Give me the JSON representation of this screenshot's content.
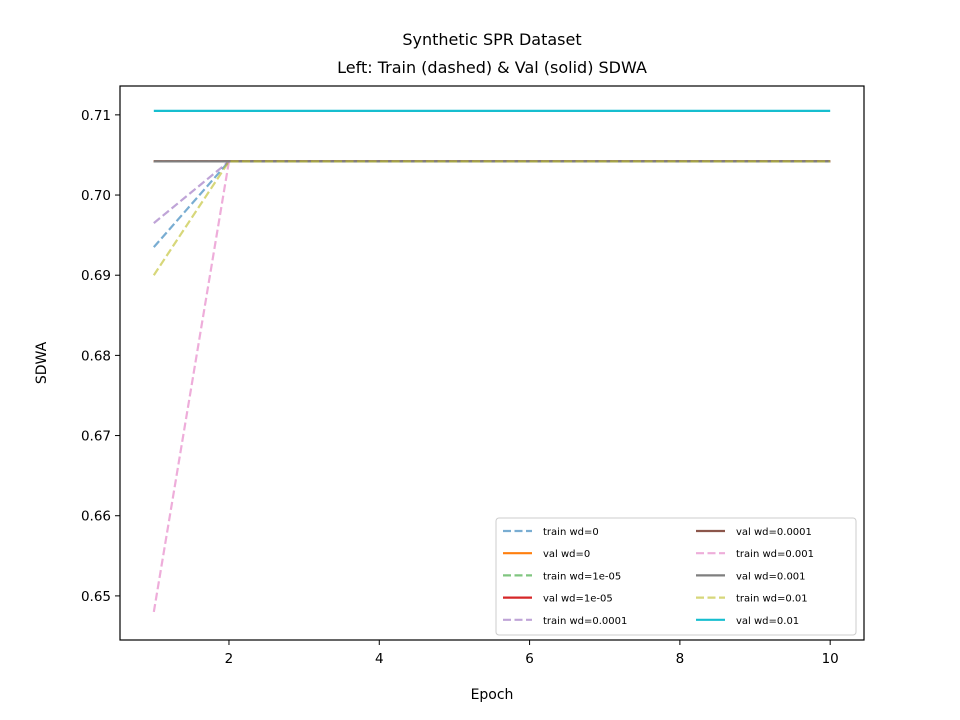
{
  "chart_data": {
    "type": "line",
    "title": "Synthetic SPR Dataset",
    "subtitle": "Left: Train (dashed) & Val (solid) SDWA",
    "xlabel": "Epoch",
    "ylabel": "SDWA",
    "xlim": [
      0.55,
      10.45
    ],
    "ylim": [
      0.6445,
      0.7136
    ],
    "xticks": [
      2,
      4,
      6,
      8,
      10
    ],
    "xtick_labels": [
      "2",
      "4",
      "6",
      "8",
      "10"
    ],
    "yticks": [
      0.65,
      0.66,
      0.67,
      0.68,
      0.69,
      0.7,
      0.71
    ],
    "ytick_labels": [
      "0.65",
      "0.66",
      "0.67",
      "0.68",
      "0.69",
      "0.70",
      "0.71"
    ],
    "grid": false,
    "legend_position": "lower-right",
    "legend_columns": 2,
    "x": [
      1,
      2,
      3,
      4,
      5,
      6,
      7,
      8,
      9,
      10
    ],
    "series": [
      {
        "name": "train wd=0",
        "color": "#1f77b4",
        "style": "dashed",
        "alpha": 0.6,
        "values": [
          0.6935,
          0.7042,
          0.7042,
          0.7042,
          0.7042,
          0.7042,
          0.7042,
          0.7042,
          0.7042,
          0.7042
        ]
      },
      {
        "name": "val wd=0",
        "color": "#ff7f0e",
        "style": "solid",
        "alpha": 1.0,
        "values": [
          0.7042,
          0.7042,
          0.7042,
          0.7042,
          0.7042,
          0.7042,
          0.7042,
          0.7042,
          0.7042,
          0.7042
        ]
      },
      {
        "name": "train wd=1e-05",
        "color": "#2ca02c",
        "style": "dashed",
        "alpha": 0.6,
        "values": [
          0.7042,
          0.7042,
          0.7042,
          0.7042,
          0.7042,
          0.7042,
          0.7042,
          0.7042,
          0.7042,
          0.7042
        ]
      },
      {
        "name": "val wd=1e-05",
        "color": "#d62728",
        "style": "solid",
        "alpha": 1.0,
        "values": [
          0.7042,
          0.7042,
          0.7042,
          0.7042,
          0.7042,
          0.7042,
          0.7042,
          0.7042,
          0.7042,
          0.7042
        ]
      },
      {
        "name": "train wd=0.0001",
        "color": "#9467bd",
        "style": "dashed",
        "alpha": 0.6,
        "values": [
          0.6965,
          0.7042,
          0.7042,
          0.7042,
          0.7042,
          0.7042,
          0.7042,
          0.7042,
          0.7042,
          0.7042
        ]
      },
      {
        "name": "val wd=0.0001",
        "color": "#8c564b",
        "style": "solid",
        "alpha": 1.0,
        "values": [
          0.7042,
          0.7042,
          0.7042,
          0.7042,
          0.7042,
          0.7042,
          0.7042,
          0.7042,
          0.7042,
          0.7042
        ]
      },
      {
        "name": "train wd=0.001",
        "color": "#e377c2",
        "style": "dashed",
        "alpha": 0.6,
        "values": [
          0.648,
          0.7042,
          0.7042,
          0.7042,
          0.7042,
          0.7042,
          0.7042,
          0.7042,
          0.7042,
          0.7042
        ]
      },
      {
        "name": "val wd=0.001",
        "color": "#7f7f7f",
        "style": "solid",
        "alpha": 1.0,
        "values": [
          0.7042,
          0.7042,
          0.7042,
          0.7042,
          0.7042,
          0.7042,
          0.7042,
          0.7042,
          0.7042,
          0.7042
        ]
      },
      {
        "name": "train wd=0.01",
        "color": "#bcbd22",
        "style": "dashed",
        "alpha": 0.6,
        "values": [
          0.69,
          0.7042,
          0.7042,
          0.7042,
          0.7042,
          0.7042,
          0.7042,
          0.7042,
          0.7042,
          0.7042
        ]
      },
      {
        "name": "val wd=0.01",
        "color": "#17becf",
        "style": "solid",
        "alpha": 1.0,
        "values": [
          0.7105,
          0.7105,
          0.7105,
          0.7105,
          0.7105,
          0.7105,
          0.7105,
          0.7105,
          0.7105,
          0.7105
        ]
      }
    ]
  }
}
